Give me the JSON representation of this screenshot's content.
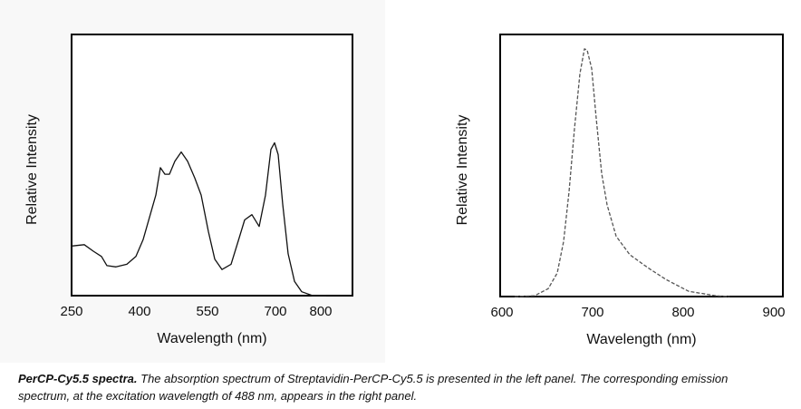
{
  "chart_data": [
    {
      "type": "line",
      "xlabel": "Wavelength (nm)",
      "ylabel": "Relative Intensity",
      "xlim": [
        250,
        870
      ],
      "xticks": [
        250,
        400,
        550,
        700,
        800
      ],
      "ylim": [
        0,
        1
      ],
      "color": "#111111",
      "line_style": "solid",
      "x": [
        250,
        278,
        298,
        316,
        328,
        348,
        372,
        392,
        408,
        422,
        436,
        446,
        456,
        466,
        478,
        492,
        506,
        522,
        536,
        552,
        566,
        582,
        602,
        618,
        632,
        648,
        664,
        678,
        690,
        698,
        706,
        716,
        728,
        742,
        758,
        782,
        812
      ],
      "values": [
        0.19,
        0.195,
        0.17,
        0.15,
        0.115,
        0.11,
        0.12,
        0.15,
        0.215,
        0.3,
        0.385,
        0.49,
        0.465,
        0.465,
        0.515,
        0.55,
        0.515,
        0.45,
        0.385,
        0.245,
        0.14,
        0.1,
        0.12,
        0.21,
        0.29,
        0.31,
        0.265,
        0.385,
        0.56,
        0.585,
        0.54,
        0.35,
        0.16,
        0.055,
        0.015,
        0,
        0
      ]
    },
    {
      "type": "line",
      "xlabel": "Wavelength (nm)",
      "ylabel": "Relative Intensity",
      "xlim": [
        598,
        910
      ],
      "xticks": [
        600,
        700,
        800,
        900
      ],
      "ylim": [
        0,
        1
      ],
      "color": "#555555",
      "line_style": "dashed",
      "x": [
        614,
        636,
        651,
        661,
        668,
        674,
        680,
        686,
        691,
        694,
        699,
        704,
        710,
        716,
        726,
        741,
        761,
        781,
        806,
        836,
        851
      ],
      "values": [
        0,
        0.003,
        0.03,
        0.09,
        0.21,
        0.4,
        0.64,
        0.85,
        0.945,
        0.94,
        0.87,
        0.68,
        0.47,
        0.35,
        0.23,
        0.16,
        0.11,
        0.065,
        0.02,
        0.003,
        0
      ]
    }
  ],
  "caption": {
    "lead": "PerCP-Cy5.5 spectra.",
    "text": "The absorption spectrum of Streptavidin-PerCP-Cy5.5 is presented in the left panel. The corresponding emission spectrum, at the excitation wavelength of 488 nm, appears in the right panel."
  }
}
